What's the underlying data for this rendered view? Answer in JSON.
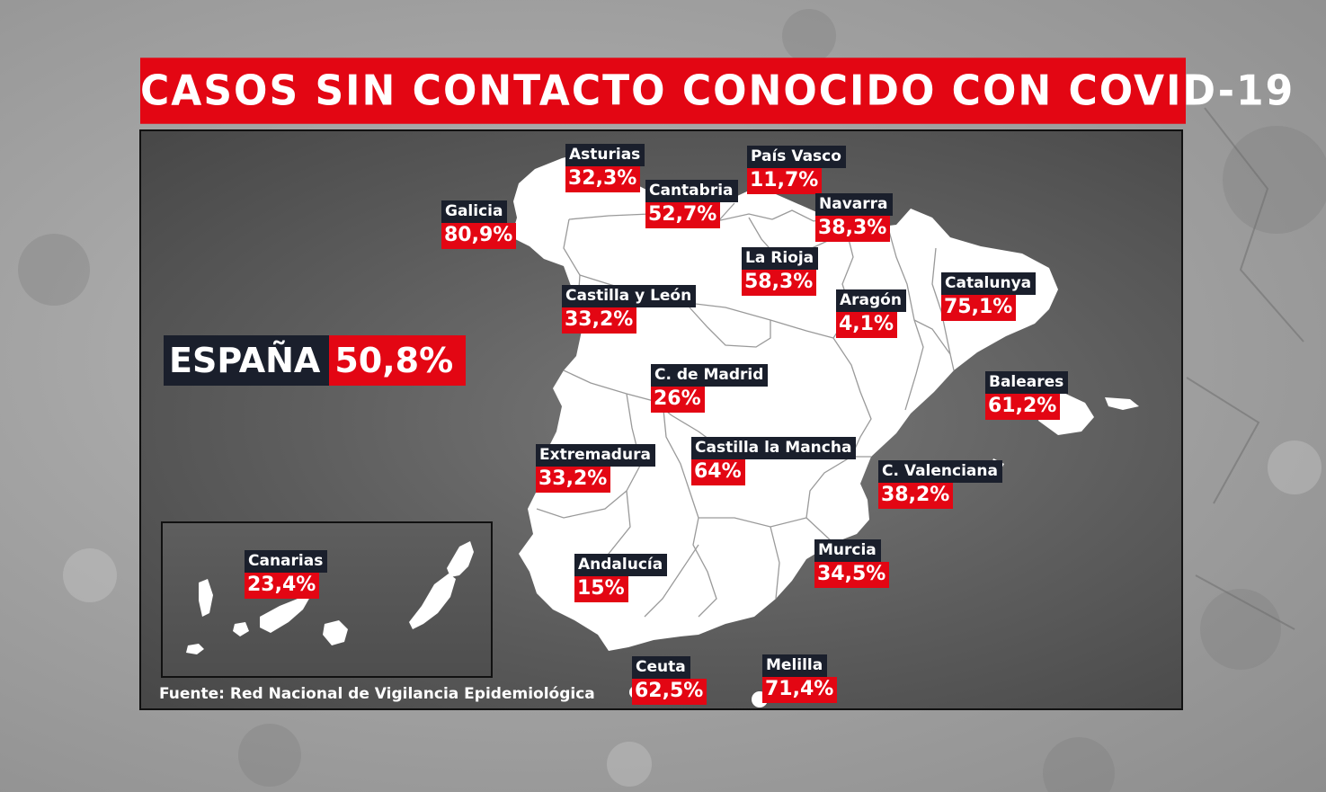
{
  "title": "CASOS SIN CONTACTO CONOCIDO CON COVID-19",
  "national": {
    "name": "ESPAÑA",
    "value": "50,8%"
  },
  "source": "Fuente: Red Nacional de Vigilancia Epidemiológica",
  "colors": {
    "accent_red": "#e30613",
    "label_navy": "#1a1f2c",
    "land": "#ffffff"
  },
  "regions": {
    "asturias": {
      "name": "Asturias",
      "value": "32,3%"
    },
    "pais_vasco": {
      "name": "País Vasco",
      "value": "11,7%"
    },
    "cantabria": {
      "name": "Cantabria",
      "value": "52,7%"
    },
    "navarra": {
      "name": "Navarra",
      "value": "38,3%"
    },
    "galicia": {
      "name": "Galicia",
      "value": "80,9%"
    },
    "la_rioja": {
      "name": "La Rioja",
      "value": "58,3%"
    },
    "catalunya": {
      "name": "Catalunya",
      "value": "75,1%"
    },
    "castilla_leon": {
      "name": "Castilla y León",
      "value": "33,2%"
    },
    "aragon": {
      "name": "Aragón",
      "value": "4,1%"
    },
    "madrid": {
      "name": "C. de Madrid",
      "value": "26%"
    },
    "baleares": {
      "name": "Baleares",
      "value": "61,2%"
    },
    "extremadura": {
      "name": "Extremadura",
      "value": "33,2%"
    },
    "castilla_mancha": {
      "name": "Castilla la Mancha",
      "value": "64%"
    },
    "valenciana": {
      "name": "C. Valenciana",
      "value": "38,2%"
    },
    "canarias": {
      "name": "Canarias",
      "value": "23,4%"
    },
    "murcia": {
      "name": "Murcia",
      "value": "34,5%"
    },
    "andalucia": {
      "name": "Andalucía",
      "value": "15%"
    },
    "ceuta": {
      "name": "Ceuta",
      "value": "62,5%"
    },
    "melilla": {
      "name": "Melilla",
      "value": "71,4%"
    }
  }
}
